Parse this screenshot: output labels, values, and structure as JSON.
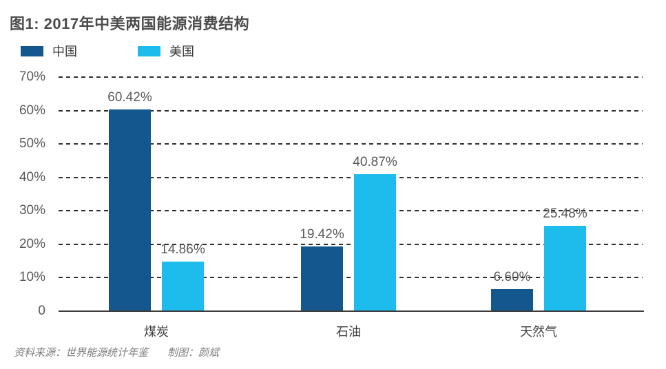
{
  "header": {
    "title": "图1: 2017年中美两国能源消费结构"
  },
  "footer": {
    "source": "资料来源：世界能源统计年鉴",
    "credit": "制图：颜斌"
  },
  "chart_data": {
    "type": "bar",
    "title": "图1: 2017年中美两国能源消费结构",
    "categories": [
      "煤炭",
      "石油",
      "天然气"
    ],
    "series": [
      {
        "name": "中国",
        "color": "#14568e",
        "values": [
          60.42,
          19.42,
          6.6
        ],
        "labels": [
          "60.42%",
          "19.42%",
          "6.60%"
        ]
      },
      {
        "name": "美国",
        "color": "#1ebcec",
        "values": [
          14.86,
          40.87,
          25.48
        ],
        "labels": [
          "14.86%",
          "40.87%",
          "25.48%"
        ]
      }
    ],
    "xlabel": "",
    "ylabel": "",
    "ylim": [
      0,
      70
    ],
    "yticks": [
      0,
      10,
      20,
      30,
      40,
      50,
      60,
      70
    ],
    "ytick_labels": [
      "0",
      "10%",
      "20%",
      "30%",
      "40%",
      "50%",
      "60%",
      "70%"
    ],
    "grid": "horizontal-dashed",
    "legend_position": "top-left",
    "background": "#ffffff"
  }
}
